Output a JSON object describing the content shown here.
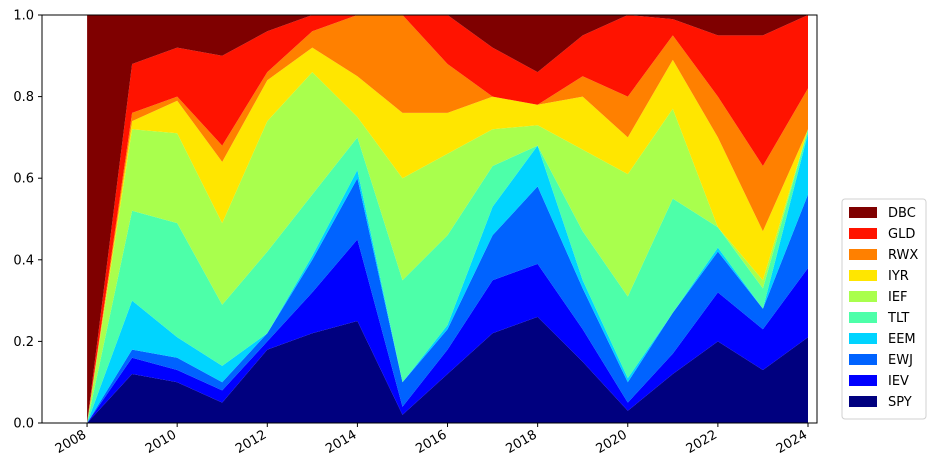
{
  "chart_data": {
    "type": "area",
    "stacked": true,
    "normalized": true,
    "x_label": "",
    "y_label": "",
    "title": "",
    "xlim": [
      2007.0,
      2024.2
    ],
    "ylim": [
      0.0,
      1.0
    ],
    "x_ticks": [
      {
        "value": 2008,
        "label": "2008"
      },
      {
        "value": 2010,
        "label": "2010"
      },
      {
        "value": 2012,
        "label": "2012"
      },
      {
        "value": 2014,
        "label": "2014"
      },
      {
        "value": 2016,
        "label": "2016"
      },
      {
        "value": 2018,
        "label": "2018"
      },
      {
        "value": 2020,
        "label": "2020"
      },
      {
        "value": 2022,
        "label": "2022"
      },
      {
        "value": 2024,
        "label": "2024"
      }
    ],
    "y_ticks": [
      {
        "value": 0.0,
        "label": "0.0"
      },
      {
        "value": 0.2,
        "label": "0.2"
      },
      {
        "value": 0.4,
        "label": "0.4"
      },
      {
        "value": 0.6,
        "label": "0.6"
      },
      {
        "value": 0.8,
        "label": "0.8"
      },
      {
        "value": 1.0,
        "label": "1.0"
      }
    ],
    "legend_position": "right",
    "grid": false,
    "x": [
      2008.0,
      2009.0,
      2010.0,
      2011.0,
      2012.0,
      2013.0,
      2014.0,
      2015.0,
      2016.0,
      2017.0,
      2018.0,
      2019.0,
      2020.0,
      2021.0,
      2022.0,
      2023.0,
      2024.0
    ],
    "series": [
      {
        "name": "SPY",
        "color": "#00007f",
        "values": [
          0.0,
          0.12,
          0.1,
          0.05,
          0.18,
          0.22,
          0.25,
          0.02,
          0.12,
          0.22,
          0.26,
          0.15,
          0.03,
          0.12,
          0.2,
          0.13,
          0.21
        ]
      },
      {
        "name": "IEV",
        "color": "#0000ff",
        "values": [
          0.0,
          0.04,
          0.03,
          0.03,
          0.02,
          0.1,
          0.2,
          0.02,
          0.06,
          0.13,
          0.13,
          0.08,
          0.02,
          0.05,
          0.12,
          0.1,
          0.17
        ]
      },
      {
        "name": "EWJ",
        "color": "#0063ff",
        "values": [
          0.0,
          0.02,
          0.03,
          0.02,
          0.02,
          0.08,
          0.15,
          0.06,
          0.05,
          0.11,
          0.19,
          0.1,
          0.05,
          0.1,
          0.1,
          0.05,
          0.18
        ]
      },
      {
        "name": "EEM",
        "color": "#00d4ff",
        "values": [
          0.0,
          0.12,
          0.05,
          0.04,
          0.0,
          0.01,
          0.02,
          0.0,
          0.01,
          0.07,
          0.1,
          0.02,
          0.01,
          0.0,
          0.01,
          0.0,
          0.15
        ]
      },
      {
        "name": "TLT",
        "color": "#4dffa9",
        "values": [
          0.0,
          0.22,
          0.28,
          0.15,
          0.2,
          0.15,
          0.08,
          0.25,
          0.22,
          0.1,
          0.0,
          0.12,
          0.2,
          0.28,
          0.05,
          0.05,
          0.01
        ]
      },
      {
        "name": "IEF",
        "color": "#a9ff4d",
        "values": [
          0.0,
          0.2,
          0.22,
          0.2,
          0.32,
          0.3,
          0.05,
          0.25,
          0.2,
          0.09,
          0.05,
          0.2,
          0.3,
          0.22,
          0.0,
          0.02,
          0.0
        ]
      },
      {
        "name": "IYR",
        "color": "#ffe600",
        "values": [
          0.0,
          0.02,
          0.08,
          0.15,
          0.1,
          0.06,
          0.1,
          0.16,
          0.1,
          0.08,
          0.05,
          0.13,
          0.09,
          0.12,
          0.22,
          0.12,
          0.0
        ]
      },
      {
        "name": "RWX",
        "color": "#ff8000",
        "values": [
          0.0,
          0.02,
          0.01,
          0.04,
          0.02,
          0.04,
          0.15,
          0.24,
          0.12,
          0.0,
          0.0,
          0.05,
          0.1,
          0.06,
          0.1,
          0.16,
          0.1
        ]
      },
      {
        "name": "GLD",
        "color": "#ff1300",
        "values": [
          0.0,
          0.12,
          0.12,
          0.22,
          0.1,
          0.04,
          0.0,
          0.0,
          0.12,
          0.12,
          0.08,
          0.1,
          0.2,
          0.04,
          0.15,
          0.32,
          0.18
        ]
      },
      {
        "name": "DBC",
        "color": "#7f0000",
        "values": [
          1.0,
          0.12,
          0.08,
          0.1,
          0.04,
          0.0,
          0.0,
          0.0,
          0.0,
          0.08,
          0.14,
          0.05,
          0.0,
          0.01,
          0.05,
          0.05,
          0.0
        ]
      }
    ]
  }
}
